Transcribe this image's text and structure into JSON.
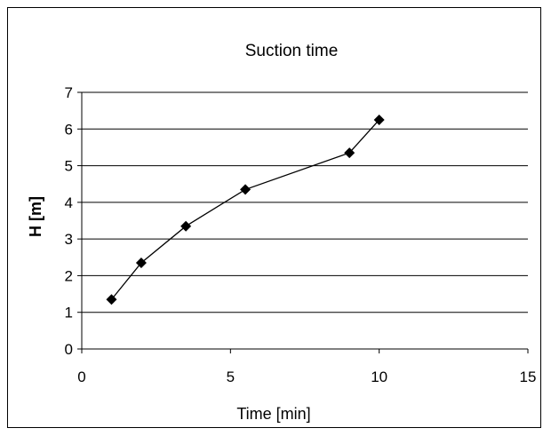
{
  "chart_data": {
    "type": "line",
    "title": "Suction time",
    "xlabel": "Time [min]",
    "ylabel": "H [m]",
    "xlim": [
      0,
      15
    ],
    "ylim": [
      0,
      7
    ],
    "xticks": [
      0,
      5,
      10,
      15
    ],
    "yticks": [
      0,
      1,
      2,
      3,
      4,
      5,
      6,
      7
    ],
    "grid": "horizontal",
    "legend": "none",
    "marker": "diamond",
    "series_color": "#000000",
    "series": [
      {
        "x": [
          1,
          2,
          3.5,
          5.5,
          9,
          10
        ],
        "y": [
          1.35,
          2.35,
          3.35,
          4.35,
          5.35,
          6.25
        ]
      }
    ]
  }
}
